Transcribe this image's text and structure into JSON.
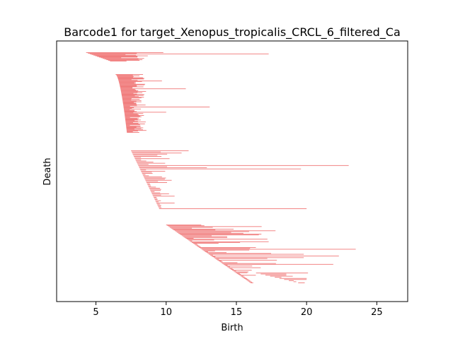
{
  "chart_data": {
    "type": "barcode",
    "title": "Barcode1 for target_Xenopus_tropicalis_CRCL_6_filtered_Ca",
    "xlabel": "Birth",
    "ylabel": "Death",
    "xlim": [
      2.2,
      27.2
    ],
    "xticks": [
      5,
      10,
      15,
      20,
      25
    ],
    "grid": false,
    "bar_color": "#f07878",
    "groups": [
      {
        "name": "g1",
        "count": 14,
        "birth_start": 4.3,
        "birth_end": 6.0,
        "end_min": 6.4,
        "end_max": 8.7,
        "long_bars": [
          [
            0,
            9.8
          ],
          [
            2,
            17.3
          ]
        ]
      },
      {
        "name": "g2",
        "count": 90,
        "birth_start": 6.4,
        "birth_end": 7.2,
        "end_min": 7.4,
        "end_max": 8.6,
        "long_bars": [
          [
            10,
            9.7
          ],
          [
            22,
            11.4
          ],
          [
            50,
            13.1
          ],
          [
            58,
            10.0
          ]
        ]
      },
      {
        "name": "g3",
        "count": 52,
        "birth_start": 7.5,
        "birth_end": 9.5,
        "end_min": 8.0,
        "end_max": 10.4,
        "long_bars": [
          [
            0,
            11.6
          ],
          [
            2,
            11.1
          ],
          [
            13,
            23.0
          ],
          [
            15,
            12.9
          ],
          [
            16,
            19.6
          ],
          [
            40,
            10.6
          ],
          [
            46,
            10.6
          ],
          [
            51,
            20.0
          ]
        ]
      },
      {
        "name": "g4",
        "count": 70,
        "birth_start": 10.0,
        "birth_end": 16.0,
        "end_min": 11.0,
        "end_max": 18.0,
        "long_bars": [
          [
            0,
            12.5
          ],
          [
            2,
            16.8
          ],
          [
            6,
            13.5
          ],
          [
            10,
            15.5
          ],
          [
            20,
            17.3
          ],
          [
            29,
            23.5
          ],
          [
            35,
            19.8
          ],
          [
            37,
            22.3
          ],
          [
            39,
            19.8
          ],
          [
            47,
            21.9
          ]
        ]
      },
      {
        "name": "g5",
        "count": 10,
        "birth_start": 16.4,
        "birth_end": 19.4,
        "end_min": 17.3,
        "end_max": 20.2,
        "long_bars": [
          [
            0,
            20.1
          ]
        ]
      }
    ]
  }
}
